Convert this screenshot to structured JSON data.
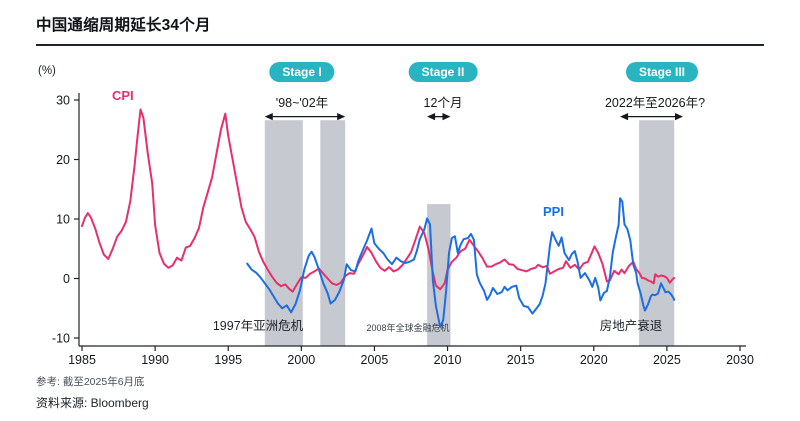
{
  "header": {
    "title": "中国通缩周期延长34个月"
  },
  "chart": {
    "unit_label": "(%)",
    "cpi_label": "CPI",
    "ppi_label": "PPI",
    "stages": [
      {
        "pill": "Stage I",
        "range": "'98~'02年"
      },
      {
        "pill": "Stage II",
        "range": "12个月"
      },
      {
        "pill": "Stage III",
        "range": "2022年至2026年?"
      }
    ],
    "annotations": {
      "asian_crisis": "1997年亚洲危机",
      "gfc": "2008年全球金融危机",
      "property": "房地产衰退"
    },
    "colors": {
      "cpi": "#e6306b",
      "ppi": "#1c6fe3",
      "band": "#c7c9d1",
      "stage_pill": "#29b4c2",
      "axis": "#20242c"
    }
  },
  "footer": {
    "reference": "参考: 截至2025年6月底",
    "source": "资料来源: Bloomberg"
  },
  "chart_data": {
    "type": "line",
    "title": "中国通缩周期延长34个月",
    "ylabel": "(%)",
    "x_range": [
      1985,
      2030
    ],
    "y_range": [
      -10,
      30
    ],
    "xticks": [
      1985,
      1990,
      1995,
      2000,
      2005,
      2010,
      2015,
      2020,
      2025,
      2030
    ],
    "yticks": [
      30,
      20,
      10,
      0,
      -10
    ],
    "grid": false,
    "legend_position": "inline-labels",
    "bands": [
      {
        "x0": 1997.5,
        "x1": 2000.1,
        "top": 26.6
      },
      {
        "x0": 2001.3,
        "x1": 2003.0,
        "top": 26.6
      },
      {
        "x0": 2008.6,
        "x1": 2010.2,
        "top": 12.5
      },
      {
        "x0": 2023.1,
        "x1": 2025.5,
        "top": 26.6
      }
    ],
    "arrows": [
      {
        "x0": 1997.5,
        "x1": 2003.0,
        "y": 27.2
      },
      {
        "x0": 2008.6,
        "x1": 2010.2,
        "y": 27.2
      },
      {
        "x0": 2021.8,
        "x1": 2026.1,
        "y": 27.2
      }
    ],
    "series": [
      {
        "name": "CPI",
        "color": "#e6306b",
        "points": [
          [
            1985.0,
            8.8
          ],
          [
            1985.2,
            10.2
          ],
          [
            1985.4,
            11.0
          ],
          [
            1985.6,
            10.3
          ],
          [
            1985.9,
            8.4
          ],
          [
            1986.2,
            6.0
          ],
          [
            1986.5,
            4.0
          ],
          [
            1986.8,
            3.3
          ],
          [
            1987.1,
            5.0
          ],
          [
            1987.4,
            7.0
          ],
          [
            1987.7,
            8.0
          ],
          [
            1988.0,
            9.5
          ],
          [
            1988.3,
            13.0
          ],
          [
            1988.6,
            19.0
          ],
          [
            1988.8,
            24.0
          ],
          [
            1989.0,
            28.4
          ],
          [
            1989.2,
            27.0
          ],
          [
            1989.5,
            21.0
          ],
          [
            1989.8,
            16.0
          ],
          [
            1990.0,
            9.0
          ],
          [
            1990.3,
            4.3
          ],
          [
            1990.6,
            2.5
          ],
          [
            1990.9,
            1.8
          ],
          [
            1991.2,
            2.2
          ],
          [
            1991.5,
            3.5
          ],
          [
            1991.8,
            3.0
          ],
          [
            1992.1,
            5.2
          ],
          [
            1992.4,
            5.5
          ],
          [
            1992.7,
            6.8
          ],
          [
            1993.0,
            8.5
          ],
          [
            1993.3,
            12.0
          ],
          [
            1993.6,
            14.5
          ],
          [
            1993.9,
            17.0
          ],
          [
            1994.2,
            21.0
          ],
          [
            1994.5,
            25.0
          ],
          [
            1994.8,
            27.7
          ],
          [
            1995.0,
            24.0
          ],
          [
            1995.3,
            20.0
          ],
          [
            1995.6,
            16.0
          ],
          [
            1995.9,
            12.0
          ],
          [
            1996.2,
            9.5
          ],
          [
            1996.5,
            8.3
          ],
          [
            1996.8,
            7.0
          ],
          [
            1997.1,
            4.5
          ],
          [
            1997.4,
            2.8
          ],
          [
            1997.7,
            1.5
          ],
          [
            1998.0,
            0.3
          ],
          [
            1998.3,
            -0.7
          ],
          [
            1998.6,
            -1.3
          ],
          [
            1998.9,
            -1.0
          ],
          [
            1999.2,
            -1.8
          ],
          [
            1999.4,
            -2.2
          ],
          [
            1999.7,
            -1.0
          ],
          [
            2000.0,
            0.2
          ],
          [
            2000.3,
            0.1
          ],
          [
            2000.6,
            0.8
          ],
          [
            2000.9,
            1.2
          ],
          [
            2001.2,
            1.7
          ],
          [
            2001.5,
            0.8
          ],
          [
            2001.8,
            0.0
          ],
          [
            2002.1,
            -0.8
          ],
          [
            2002.4,
            -1.1
          ],
          [
            2002.7,
            -0.7
          ],
          [
            2003.0,
            0.4
          ],
          [
            2003.3,
            0.9
          ],
          [
            2003.6,
            0.8
          ],
          [
            2003.9,
            2.5
          ],
          [
            2004.2,
            3.8
          ],
          [
            2004.5,
            5.3
          ],
          [
            2004.8,
            4.3
          ],
          [
            2005.1,
            2.9
          ],
          [
            2005.4,
            1.8
          ],
          [
            2005.7,
            1.3
          ],
          [
            2006.0,
            1.9
          ],
          [
            2006.3,
            1.2
          ],
          [
            2006.6,
            1.5
          ],
          [
            2006.9,
            2.2
          ],
          [
            2007.2,
            3.3
          ],
          [
            2007.5,
            4.4
          ],
          [
            2007.8,
            6.5
          ],
          [
            2008.1,
            8.7
          ],
          [
            2008.4,
            7.7
          ],
          [
            2008.7,
            4.9
          ],
          [
            2009.0,
            1.0
          ],
          [
            2009.2,
            -1.2
          ],
          [
            2009.5,
            -1.8
          ],
          [
            2009.8,
            -0.8
          ],
          [
            2010.0,
            1.5
          ],
          [
            2010.3,
            2.8
          ],
          [
            2010.6,
            3.5
          ],
          [
            2010.9,
            4.6
          ],
          [
            2011.2,
            5.0
          ],
          [
            2011.5,
            6.5
          ],
          [
            2011.8,
            5.5
          ],
          [
            2012.1,
            4.5
          ],
          [
            2012.4,
            3.4
          ],
          [
            2012.7,
            2.0
          ],
          [
            2013.0,
            2.0
          ],
          [
            2013.3,
            2.4
          ],
          [
            2013.6,
            2.7
          ],
          [
            2013.9,
            3.2
          ],
          [
            2014.2,
            2.4
          ],
          [
            2014.5,
            2.3
          ],
          [
            2014.8,
            1.6
          ],
          [
            2015.1,
            1.4
          ],
          [
            2015.4,
            1.2
          ],
          [
            2015.7,
            1.6
          ],
          [
            2016.0,
            1.8
          ],
          [
            2016.2,
            2.3
          ],
          [
            2016.5,
            1.9
          ],
          [
            2016.8,
            2.1
          ],
          [
            2017.0,
            0.8
          ],
          [
            2017.3,
            1.2
          ],
          [
            2017.6,
            1.6
          ],
          [
            2017.9,
            1.8
          ],
          [
            2018.1,
            2.9
          ],
          [
            2018.4,
            1.8
          ],
          [
            2018.7,
            2.3
          ],
          [
            2019.0,
            1.5
          ],
          [
            2019.3,
            2.5
          ],
          [
            2019.6,
            2.8
          ],
          [
            2019.9,
            4.5
          ],
          [
            2020.05,
            5.4
          ],
          [
            2020.3,
            4.3
          ],
          [
            2020.6,
            2.4
          ],
          [
            2020.9,
            -0.5
          ],
          [
            2021.1,
            -0.3
          ],
          [
            2021.4,
            1.3
          ],
          [
            2021.7,
            0.7
          ],
          [
            2021.9,
            1.5
          ],
          [
            2022.1,
            0.9
          ],
          [
            2022.4,
            2.1
          ],
          [
            2022.7,
            2.8
          ],
          [
            2022.9,
            1.6
          ],
          [
            2023.1,
            1.0
          ],
          [
            2023.3,
            0.1
          ],
          [
            2023.5,
            0.0
          ],
          [
            2023.7,
            -0.3
          ],
          [
            2023.9,
            -0.5
          ],
          [
            2024.1,
            -0.8
          ],
          [
            2024.2,
            0.7
          ],
          [
            2024.4,
            0.3
          ],
          [
            2024.6,
            0.5
          ],
          [
            2024.8,
            0.4
          ],
          [
            2025.0,
            0.1
          ],
          [
            2025.2,
            -0.7
          ],
          [
            2025.4,
            -0.1
          ],
          [
            2025.5,
            0.1
          ]
        ]
      },
      {
        "name": "PPI",
        "color": "#1c6fe3",
        "points": [
          [
            1996.3,
            2.5
          ],
          [
            1996.6,
            1.5
          ],
          [
            1996.9,
            1.0
          ],
          [
            1997.2,
            0.2
          ],
          [
            1997.5,
            -0.8
          ],
          [
            1997.8,
            -1.8
          ],
          [
            1998.1,
            -3.0
          ],
          [
            1998.4,
            -4.2
          ],
          [
            1998.7,
            -5.0
          ],
          [
            1999.0,
            -4.5
          ],
          [
            1999.3,
            -5.7
          ],
          [
            1999.6,
            -4.3
          ],
          [
            1999.9,
            -2.0
          ],
          [
            2000.2,
            1.5
          ],
          [
            2000.5,
            3.8
          ],
          [
            2000.7,
            4.5
          ],
          [
            2000.9,
            3.6
          ],
          [
            2001.2,
            1.5
          ],
          [
            2001.5,
            -0.8
          ],
          [
            2001.8,
            -2.5
          ],
          [
            2002.0,
            -4.2
          ],
          [
            2002.3,
            -3.6
          ],
          [
            2002.6,
            -2.2
          ],
          [
            2002.9,
            -0.3
          ],
          [
            2003.1,
            2.4
          ],
          [
            2003.4,
            1.4
          ],
          [
            2003.7,
            1.2
          ],
          [
            2003.9,
            3.0
          ],
          [
            2004.2,
            4.7
          ],
          [
            2004.5,
            6.4
          ],
          [
            2004.8,
            8.4
          ],
          [
            2005.0,
            5.9
          ],
          [
            2005.3,
            5.0
          ],
          [
            2005.6,
            4.3
          ],
          [
            2005.9,
            3.2
          ],
          [
            2006.2,
            2.4
          ],
          [
            2006.5,
            3.5
          ],
          [
            2006.8,
            2.9
          ],
          [
            2007.1,
            2.6
          ],
          [
            2007.4,
            2.8
          ],
          [
            2007.7,
            3.2
          ],
          [
            2007.9,
            4.6
          ],
          [
            2008.1,
            6.6
          ],
          [
            2008.4,
            8.2
          ],
          [
            2008.6,
            10.1
          ],
          [
            2008.8,
            9.1
          ],
          [
            2009.0,
            -0.4
          ],
          [
            2009.2,
            -4.6
          ],
          [
            2009.5,
            -8.2
          ],
          [
            2009.7,
            -7.0
          ],
          [
            2009.9,
            -2.1
          ],
          [
            2010.1,
            4.3
          ],
          [
            2010.3,
            6.8
          ],
          [
            2010.5,
            7.1
          ],
          [
            2010.7,
            4.3
          ],
          [
            2010.9,
            5.7
          ],
          [
            2011.1,
            6.6
          ],
          [
            2011.4,
            6.8
          ],
          [
            2011.6,
            7.5
          ],
          [
            2011.8,
            6.5
          ],
          [
            2012.0,
            0.7
          ],
          [
            2012.2,
            -0.7
          ],
          [
            2012.5,
            -2.1
          ],
          [
            2012.7,
            -3.6
          ],
          [
            2012.9,
            -2.8
          ],
          [
            2013.1,
            -1.6
          ],
          [
            2013.4,
            -2.6
          ],
          [
            2013.7,
            -2.3
          ],
          [
            2013.9,
            -1.4
          ],
          [
            2014.1,
            -2.0
          ],
          [
            2014.4,
            -1.4
          ],
          [
            2014.7,
            -1.2
          ],
          [
            2014.9,
            -3.3
          ],
          [
            2015.2,
            -4.6
          ],
          [
            2015.5,
            -4.8
          ],
          [
            2015.8,
            -5.9
          ],
          [
            2016.0,
            -5.3
          ],
          [
            2016.3,
            -4.3
          ],
          [
            2016.5,
            -2.9
          ],
          [
            2016.7,
            -0.8
          ],
          [
            2016.9,
            3.3
          ],
          [
            2017.0,
            5.5
          ],
          [
            2017.15,
            7.8
          ],
          [
            2017.4,
            6.4
          ],
          [
            2017.6,
            5.5
          ],
          [
            2017.8,
            6.9
          ],
          [
            2018.0,
            4.3
          ],
          [
            2018.3,
            3.1
          ],
          [
            2018.5,
            4.1
          ],
          [
            2018.7,
            4.6
          ],
          [
            2018.9,
            2.7
          ],
          [
            2019.1,
            0.1
          ],
          [
            2019.4,
            0.9
          ],
          [
            2019.7,
            -0.3
          ],
          [
            2019.9,
            -1.4
          ],
          [
            2020.1,
            0.1
          ],
          [
            2020.3,
            -1.5
          ],
          [
            2020.45,
            -3.7
          ],
          [
            2020.7,
            -2.4
          ],
          [
            2020.9,
            -2.1
          ],
          [
            2021.1,
            0.3
          ],
          [
            2021.3,
            4.4
          ],
          [
            2021.5,
            6.8
          ],
          [
            2021.7,
            9.0
          ],
          [
            2021.8,
            13.5
          ],
          [
            2021.95,
            12.9
          ],
          [
            2022.1,
            9.1
          ],
          [
            2022.3,
            8.3
          ],
          [
            2022.5,
            6.4
          ],
          [
            2022.7,
            2.3
          ],
          [
            2022.9,
            0.9
          ],
          [
            2023.0,
            -0.8
          ],
          [
            2023.2,
            -2.5
          ],
          [
            2023.4,
            -4.6
          ],
          [
            2023.5,
            -5.4
          ],
          [
            2023.7,
            -4.4
          ],
          [
            2023.9,
            -3.0
          ],
          [
            2024.0,
            -2.7
          ],
          [
            2024.2,
            -2.8
          ],
          [
            2024.4,
            -2.5
          ],
          [
            2024.6,
            -0.8
          ],
          [
            2024.8,
            -1.8
          ],
          [
            2024.9,
            -2.3
          ],
          [
            2025.1,
            -2.2
          ],
          [
            2025.3,
            -2.7
          ],
          [
            2025.45,
            -3.3
          ],
          [
            2025.5,
            -3.6
          ]
        ]
      }
    ]
  }
}
